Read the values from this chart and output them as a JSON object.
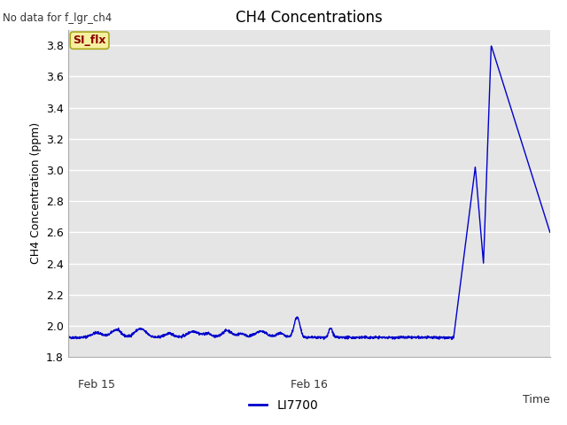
{
  "title": "CH4 Concentrations",
  "ylabel": "CH4 Concentration (ppm)",
  "top_left_text": "No data for f_lgr_ch4",
  "legend_label": "LI7700",
  "line_color": "#0000cc",
  "ylim": [
    1.8,
    3.9
  ],
  "yticks": [
    1.8,
    2.0,
    2.2,
    2.4,
    2.6,
    2.8,
    3.0,
    3.2,
    3.4,
    3.6,
    3.8
  ],
  "background_color": "#e5e5e5",
  "annotation_box_text": "SI_flx",
  "annotation_box_facecolor": "#f5f0a0",
  "annotation_box_edgecolor": "#aaa820",
  "annotation_text_color": "#8b0000",
  "grid_color": "#ffffff",
  "fig_facecolor": "#ffffff"
}
